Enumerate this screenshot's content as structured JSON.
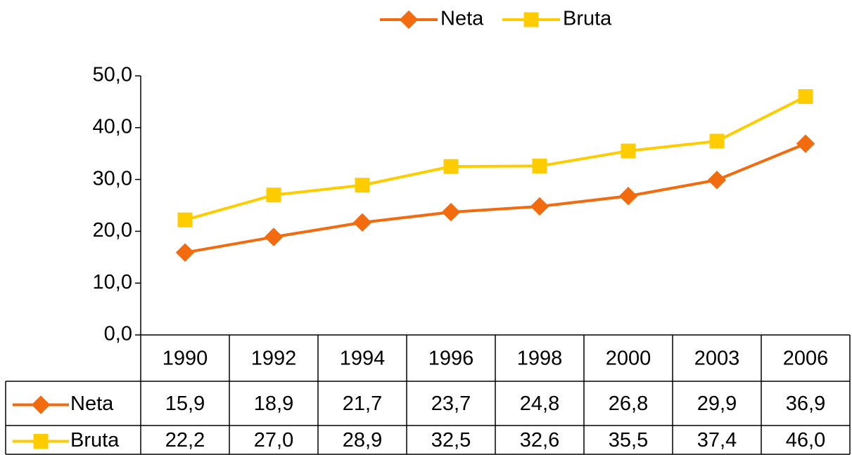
{
  "chart_data": {
    "type": "line",
    "categories": [
      "1990",
      "1992",
      "1994",
      "1996",
      "1998",
      "2000",
      "2003",
      "2006"
    ],
    "series": [
      {
        "name": "Neta",
        "color": "#f26b0f",
        "marker": "diamond",
        "values": [
          15.9,
          18.9,
          21.7,
          23.7,
          24.8,
          26.8,
          29.9,
          36.9
        ],
        "value_labels": [
          "15,9",
          "18,9",
          "21,7",
          "23,7",
          "24,8",
          "26,8",
          "29,9",
          "36,9"
        ]
      },
      {
        "name": "Bruta",
        "color": "#ffcc00",
        "marker": "square",
        "values": [
          22.2,
          27.0,
          28.9,
          32.5,
          32.6,
          35.5,
          37.4,
          46.0
        ],
        "value_labels": [
          "22,2",
          "27,0",
          "28,9",
          "32,5",
          "32,6",
          "35,5",
          "37,4",
          "46,0"
        ]
      }
    ],
    "ylim": [
      0,
      50
    ],
    "yticks": [
      {
        "value": 0,
        "label": "0,0"
      },
      {
        "value": 10,
        "label": "10,0"
      },
      {
        "value": 20,
        "label": "20,0"
      },
      {
        "value": 30,
        "label": "30,0"
      },
      {
        "value": 40,
        "label": "40,0"
      },
      {
        "value": 50,
        "label": "50,0"
      }
    ],
    "legend": "top",
    "grid": false
  }
}
